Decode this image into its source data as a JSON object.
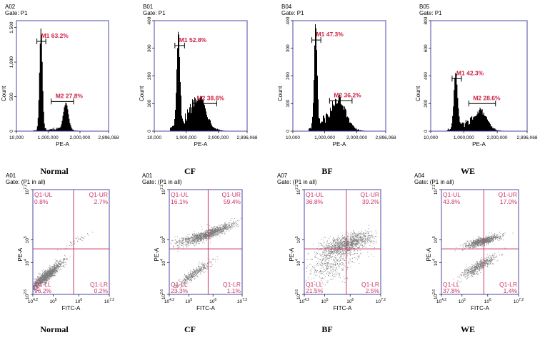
{
  "colors": {
    "frame": "#4a4aa8",
    "quad_line": "#cc3366",
    "quad_text": "#cc3366",
    "marker_text": "#cc2244",
    "fill": "#000000"
  },
  "chart_data": [
    {
      "type": "area",
      "plot_id": "A02",
      "gate": "Gate: P1",
      "xlabel": "PE-A",
      "ylabel": "Count",
      "x_ticks": [
        "10,000",
        "1,000,000",
        "2,000,000",
        "2,896,068"
      ],
      "x_tick_values": [
        10000,
        1000000,
        2000000,
        2896068
      ],
      "xlim": [
        10000,
        2896068
      ],
      "y_ticks": [
        "0",
        "500",
        "1,000",
        "1,500"
      ],
      "y_tick_values": [
        0,
        500,
        1000,
        1500
      ],
      "ylim": [
        0,
        1600
      ],
      "grid": false,
      "markers": [
        {
          "label": "M1 63.2%",
          "range": [
            650000,
            930000
          ],
          "y": 1300
        },
        {
          "label": "M2 27.8%",
          "range": [
            1100000,
            1800000
          ],
          "y": 430
        }
      ],
      "peaks": [
        {
          "center": 780000,
          "height": 1480,
          "width": 45000
        },
        {
          "center": 1560000,
          "height": 380,
          "width": 80000
        }
      ],
      "background": 35,
      "caption": "Normal"
    },
    {
      "type": "area",
      "plot_id": "B01",
      "gate": "Gate: P1",
      "xlabel": "PE-A",
      "ylabel": "Count",
      "x_ticks": [
        "10,000",
        "1,000,000",
        "2,000,000",
        "2,896,068"
      ],
      "x_tick_values": [
        10000,
        1000000,
        2000000,
        2896068
      ],
      "xlim": [
        10000,
        2896068
      ],
      "y_ticks": [
        "0",
        "100",
        "200",
        "300",
        "400"
      ],
      "y_tick_values": [
        0,
        100,
        200,
        300,
        400
      ],
      "ylim": [
        0,
        400
      ],
      "grid": false,
      "markers": [
        {
          "label": "M1 52.8%",
          "range": [
            650000,
            950000
          ],
          "y": 310
        },
        {
          "label": "M2 38.6%",
          "range": [
            1200000,
            1950000
          ],
          "y": 100
        }
      ],
      "peaks": [
        {
          "center": 760000,
          "height": 330,
          "width": 50000
        },
        {
          "center": 1400000,
          "height": 90,
          "width": 200000
        }
      ],
      "background": 45,
      "caption": "CF"
    },
    {
      "type": "area",
      "plot_id": "B04",
      "gate": "Gate: P1",
      "xlabel": "PE-A",
      "ylabel": "Count",
      "x_ticks": [
        "10,000",
        "1,000,000",
        "2,000,000",
        "2,896,068"
      ],
      "x_tick_values": [
        10000,
        1000000,
        2000000,
        2896068
      ],
      "xlim": [
        10000,
        2896068
      ],
      "y_ticks": [
        "0",
        "100",
        "200",
        "300",
        "400"
      ],
      "y_tick_values": [
        0,
        100,
        200,
        300,
        400
      ],
      "ylim": [
        0,
        400
      ],
      "grid": false,
      "markers": [
        {
          "label": "M1 47.3%",
          "range": [
            600000,
            880000
          ],
          "y": 330
        },
        {
          "label": "M2 36.2%",
          "range": [
            1150000,
            1850000
          ],
          "y": 110
        }
      ],
      "peaks": [
        {
          "center": 720000,
          "height": 370,
          "width": 45000
        },
        {
          "center": 1450000,
          "height": 80,
          "width": 200000
        }
      ],
      "background": 45,
      "caption": "BF"
    },
    {
      "type": "area",
      "plot_id": "B05",
      "gate": "Gate: P1",
      "xlabel": "PE-A",
      "ylabel": "Count",
      "x_ticks": [
        "10,000",
        "1,000,000",
        "2,000,000",
        "2,896,068"
      ],
      "x_tick_values": [
        10000,
        1000000,
        2000000,
        2896068
      ],
      "xlim": [
        10000,
        2896068
      ],
      "y_ticks": [
        "0",
        "200",
        "400",
        "600",
        "800"
      ],
      "y_tick_values": [
        0,
        200,
        400,
        600,
        800
      ],
      "ylim": [
        0,
        800
      ],
      "grid": false,
      "markers": [
        {
          "label": "M1 42.3%",
          "range": [
            650000,
            930000
          ],
          "y": 380
        },
        {
          "label": "M2 28.6%",
          "range": [
            1150000,
            1950000
          ],
          "y": 200
        }
      ],
      "peaks": [
        {
          "center": 760000,
          "height": 400,
          "width": 55000
        },
        {
          "center": 1500000,
          "height": 110,
          "width": 180000
        }
      ],
      "background": 55,
      "caption": "WE"
    },
    {
      "type": "scatter",
      "plot_id": "A01",
      "gate": "Gate: (P1 in all)",
      "xlabel": "FITC-A",
      "ylabel": "PE-A",
      "x_ticks": [
        "10^4.2",
        "10^5",
        "10^6",
        "10^7.2"
      ],
      "x_tick_values": [
        4.2,
        5,
        6,
        7.2
      ],
      "y_ticks": [
        "10^2.6",
        "10^4",
        "10^5",
        "10^7.2"
      ],
      "y_tick_values": [
        2.6,
        4,
        5,
        7.2
      ],
      "scale": "log10",
      "xlim": [
        4.2,
        7.2
      ],
      "ylim": [
        2.6,
        7.2
      ],
      "quadrant_divider": {
        "x": 5.8,
        "y": 4.6
      },
      "quadrants": {
        "UL": "Q1-UL",
        "UR": "Q1-UR",
        "LL": "Q1-LL",
        "LR": "Q1-LR"
      },
      "quadrant_values": {
        "UL": "0.8%",
        "UR": "2.7%",
        "LL": "96.2%",
        "LR": "0.2%"
      },
      "clusters": [
        {
          "cx": 4.7,
          "cy": 3.4,
          "spread_along": 0.45,
          "spread_across": 0.09,
          "angle": 45,
          "points": 1400
        },
        {
          "cx": 6.0,
          "cy": 5.0,
          "spread_along": 0.35,
          "spread_across": 0.06,
          "angle": 30,
          "points": 40
        }
      ],
      "caption": "Normal"
    },
    {
      "type": "scatter",
      "plot_id": "A01",
      "gate": "Gate: (P1 in all)",
      "xlabel": "FITC-A",
      "ylabel": "PE-A",
      "x_ticks": [
        "10^4.2",
        "10^5",
        "10^6",
        "10^7.2"
      ],
      "x_tick_values": [
        4.2,
        5,
        6,
        7.2
      ],
      "y_ticks": [
        "10^2.6",
        "10^4",
        "10^5",
        "10^7.2"
      ],
      "y_tick_values": [
        2.6,
        4,
        5,
        7.2
      ],
      "scale": "log10",
      "xlim": [
        4.2,
        7.2
      ],
      "ylim": [
        2.6,
        7.2
      ],
      "quadrant_divider": {
        "x": 5.8,
        "y": 4.6
      },
      "quadrants": {
        "UL": "Q1-UL",
        "UR": "Q1-UR",
        "LL": "Q1-LL",
        "LR": "Q1-LR"
      },
      "quadrant_values": {
        "UL": "16.1%",
        "UR": "59.4%",
        "LL": "23.3%",
        "LR": "1.1%"
      },
      "clusters": [
        {
          "cx": 5.9,
          "cy": 5.3,
          "spread_along": 0.55,
          "spread_across": 0.09,
          "angle": 22,
          "points": 1000
        },
        {
          "cx": 5.15,
          "cy": 5.05,
          "spread_along": 0.5,
          "spread_across": 0.12,
          "angle": 15,
          "points": 280
        },
        {
          "cx": 5.2,
          "cy": 3.5,
          "spread_along": 0.45,
          "spread_across": 0.09,
          "angle": 38,
          "points": 420
        }
      ],
      "caption": "CF"
    },
    {
      "type": "scatter",
      "plot_id": "A07",
      "gate": "Gate: (P1 in all)",
      "xlabel": "FITC-A",
      "ylabel": "PE-A",
      "x_ticks": [
        "10^4.2",
        "10^5",
        "10^6",
        "10^7.2"
      ],
      "x_tick_values": [
        4.2,
        5,
        6,
        7.2
      ],
      "y_ticks": [
        "10^2.6",
        "10^4",
        "10^5",
        "10^7.2"
      ],
      "y_tick_values": [
        2.6,
        4,
        5,
        7.2
      ],
      "scale": "log10",
      "xlim": [
        4.2,
        7.2
      ],
      "ylim": [
        2.6,
        7.2
      ],
      "quadrant_divider": {
        "x": 5.85,
        "y": 4.6
      },
      "quadrants": {
        "UL": "Q1-UL",
        "UR": "Q1-UR",
        "LL": "Q1-LL",
        "LR": "Q1-LR"
      },
      "quadrant_values": {
        "UL": "36.8%",
        "UR": "39.2%",
        "LL": "21.5%",
        "LR": "2.5%"
      },
      "clusters": [
        {
          "cx": 5.85,
          "cy": 4.85,
          "spread_along": 0.5,
          "spread_across": 0.18,
          "angle": 20,
          "points": 1100
        },
        {
          "cx": 5.3,
          "cy": 4.0,
          "spread_along": 0.6,
          "spread_across": 0.35,
          "angle": 30,
          "points": 500
        }
      ],
      "caption": "BF"
    },
    {
      "type": "scatter",
      "plot_id": "A04",
      "gate": "Gate: (P1 in all)",
      "xlabel": "FITC-A",
      "ylabel": "PE-A",
      "x_ticks": [
        "10^4.2",
        "10^5",
        "10^6",
        "10^7.2"
      ],
      "x_tick_values": [
        4.2,
        5,
        6,
        7.2
      ],
      "y_ticks": [
        "10^2.6",
        "10^4",
        "10^5",
        "10^7.2"
      ],
      "y_tick_values": [
        2.6,
        4,
        5,
        7.2
      ],
      "scale": "log10",
      "xlim": [
        4.2,
        7.2
      ],
      "ylim": [
        2.6,
        7.2
      ],
      "quadrant_divider": {
        "x": 5.85,
        "y": 4.6
      },
      "quadrants": {
        "UL": "Q1-UL",
        "UR": "Q1-UR",
        "LL": "Q1-LL",
        "LR": "Q1-LR"
      },
      "quadrant_values": {
        "UL": "43.8%",
        "UR": "17.0%",
        "LL": "37.8%",
        "LR": "1.4%"
      },
      "clusters": [
        {
          "cx": 5.8,
          "cy": 4.95,
          "spread_along": 0.35,
          "spread_across": 0.08,
          "angle": 18,
          "points": 900
        },
        {
          "cx": 5.65,
          "cy": 3.85,
          "spread_along": 0.4,
          "spread_across": 0.1,
          "angle": 35,
          "points": 600
        }
      ],
      "caption": "WE"
    }
  ]
}
